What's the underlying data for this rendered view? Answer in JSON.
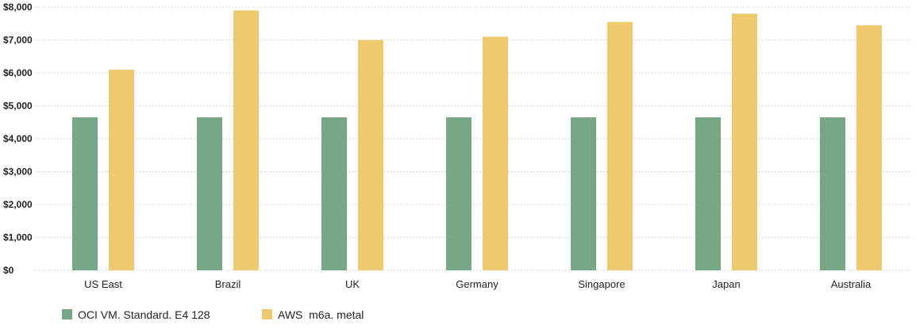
{
  "chart_data": {
    "type": "bar",
    "categories": [
      "US East",
      "Brazil",
      "UK",
      "Germany",
      "Singapore",
      "Japan",
      "Australia"
    ],
    "series": [
      {
        "name": "OCI VM. Standard. E4 128",
        "color": "#76a886",
        "values": [
          4650,
          4650,
          4650,
          4650,
          4650,
          4650,
          4650
        ]
      },
      {
        "name": "AWS  m6a. metal",
        "color": "#eec96d",
        "values": [
          6100,
          7900,
          7000,
          7100,
          7550,
          7800,
          7450
        ]
      }
    ],
    "yticks": [
      "$0",
      "$1,000",
      "$2,000",
      "$3,000",
      "$4,000",
      "$5,000",
      "$6,000",
      "$7,000",
      "$8,000"
    ],
    "ylim": [
      0,
      8000
    ],
    "grid": true,
    "grid_style": "dotted",
    "legend_position": "bottom-left"
  }
}
